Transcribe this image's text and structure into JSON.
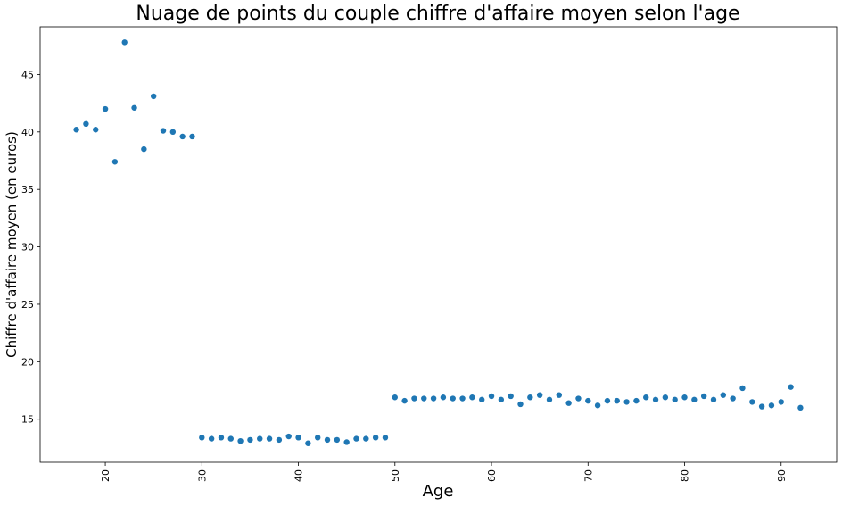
{
  "chart_data": {
    "type": "scatter",
    "title": "Nuage de points du couple chiffre d'affaire moyen selon l'age",
    "xlabel": "Age",
    "ylabel": "Chiffre d'affaire moyen (en euros)",
    "xlim": [
      13.25,
      95.75
    ],
    "ylim": [
      11.25,
      49.15
    ],
    "xticks": [
      20,
      30,
      40,
      50,
      60,
      70,
      80,
      90
    ],
    "yticks": [
      15,
      20,
      25,
      30,
      35,
      40,
      45
    ],
    "grid": false,
    "color": "#1f77b4",
    "x": [
      17,
      18,
      19,
      20,
      21,
      22,
      23,
      24,
      25,
      26,
      27,
      28,
      29,
      30,
      31,
      32,
      33,
      34,
      35,
      36,
      37,
      38,
      39,
      40,
      41,
      42,
      43,
      44,
      45,
      46,
      47,
      48,
      49,
      50,
      51,
      52,
      53,
      54,
      55,
      56,
      57,
      58,
      59,
      60,
      61,
      62,
      63,
      64,
      65,
      66,
      67,
      68,
      69,
      70,
      71,
      72,
      73,
      74,
      75,
      76,
      77,
      78,
      79,
      80,
      81,
      82,
      83,
      84,
      85,
      86,
      87,
      88,
      89,
      90,
      91,
      92
    ],
    "y": [
      40.2,
      40.7,
      40.2,
      42.0,
      37.4,
      47.8,
      42.1,
      38.5,
      43.1,
      40.1,
      40.0,
      39.6,
      39.6,
      13.4,
      13.3,
      13.4,
      13.3,
      13.1,
      13.2,
      13.3,
      13.3,
      13.2,
      13.5,
      13.4,
      12.9,
      13.4,
      13.2,
      13.2,
      13.0,
      13.3,
      13.3,
      13.4,
      13.4,
      16.9,
      16.6,
      16.8,
      16.8,
      16.8,
      16.9,
      16.8,
      16.8,
      16.9,
      16.7,
      17.0,
      16.7,
      17.0,
      16.3,
      16.9,
      17.1,
      16.7,
      17.1,
      16.4,
      16.8,
      16.6,
      16.2,
      16.6,
      16.6,
      16.5,
      16.6,
      16.9,
      16.7,
      16.9,
      16.7,
      16.9,
      16.7,
      17.0,
      16.7,
      17.1,
      16.8,
      17.7,
      16.5,
      16.1,
      16.2,
      16.5,
      17.8,
      16.0
    ]
  }
}
